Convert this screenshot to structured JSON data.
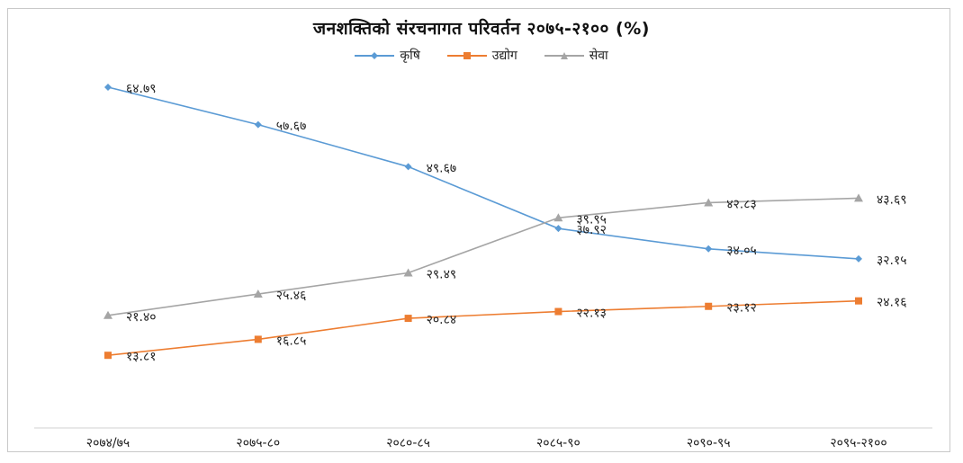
{
  "chart_data": {
    "type": "line",
    "title": "जनशक्तिको संरचनागत परिवर्तन २०७५-२१०० (%)",
    "categories": [
      "२०७४/७५",
      "२०७५-८०",
      "२०८०-८५",
      "२०८५-९०",
      "२०९०-९५",
      "२०९५-२१००"
    ],
    "ylim": [
      0,
      80
    ],
    "grid": false,
    "legend_position": "top",
    "series": [
      {
        "name": "कृषि",
        "color": "#5b9bd5",
        "marker": "diamond",
        "values": [
          64.79,
          57.67,
          49.67,
          37.92,
          34.05,
          32.15
        ],
        "labels": [
          "६४.७९",
          "५७.६७",
          "४९.६७",
          "३७.९२",
          "३४.०५",
          "३२.१५"
        ]
      },
      {
        "name": "उद्योग",
        "color": "#ed7d31",
        "marker": "square",
        "values": [
          13.81,
          16.85,
          20.84,
          22.13,
          23.12,
          24.16
        ],
        "labels": [
          "१३.८१",
          "१६.८५",
          "२०.८४",
          "२२.१३",
          "२३.१२",
          "२४.१६"
        ]
      },
      {
        "name": "सेवा",
        "color": "#a5a5a5",
        "marker": "triangle",
        "values": [
          21.4,
          25.46,
          29.49,
          39.95,
          42.83,
          43.69
        ],
        "labels": [
          "२१.४०",
          "२५.४६",
          "२९.४९",
          "३९.९५",
          "४२.८३",
          "४३.६९"
        ]
      }
    ]
  }
}
